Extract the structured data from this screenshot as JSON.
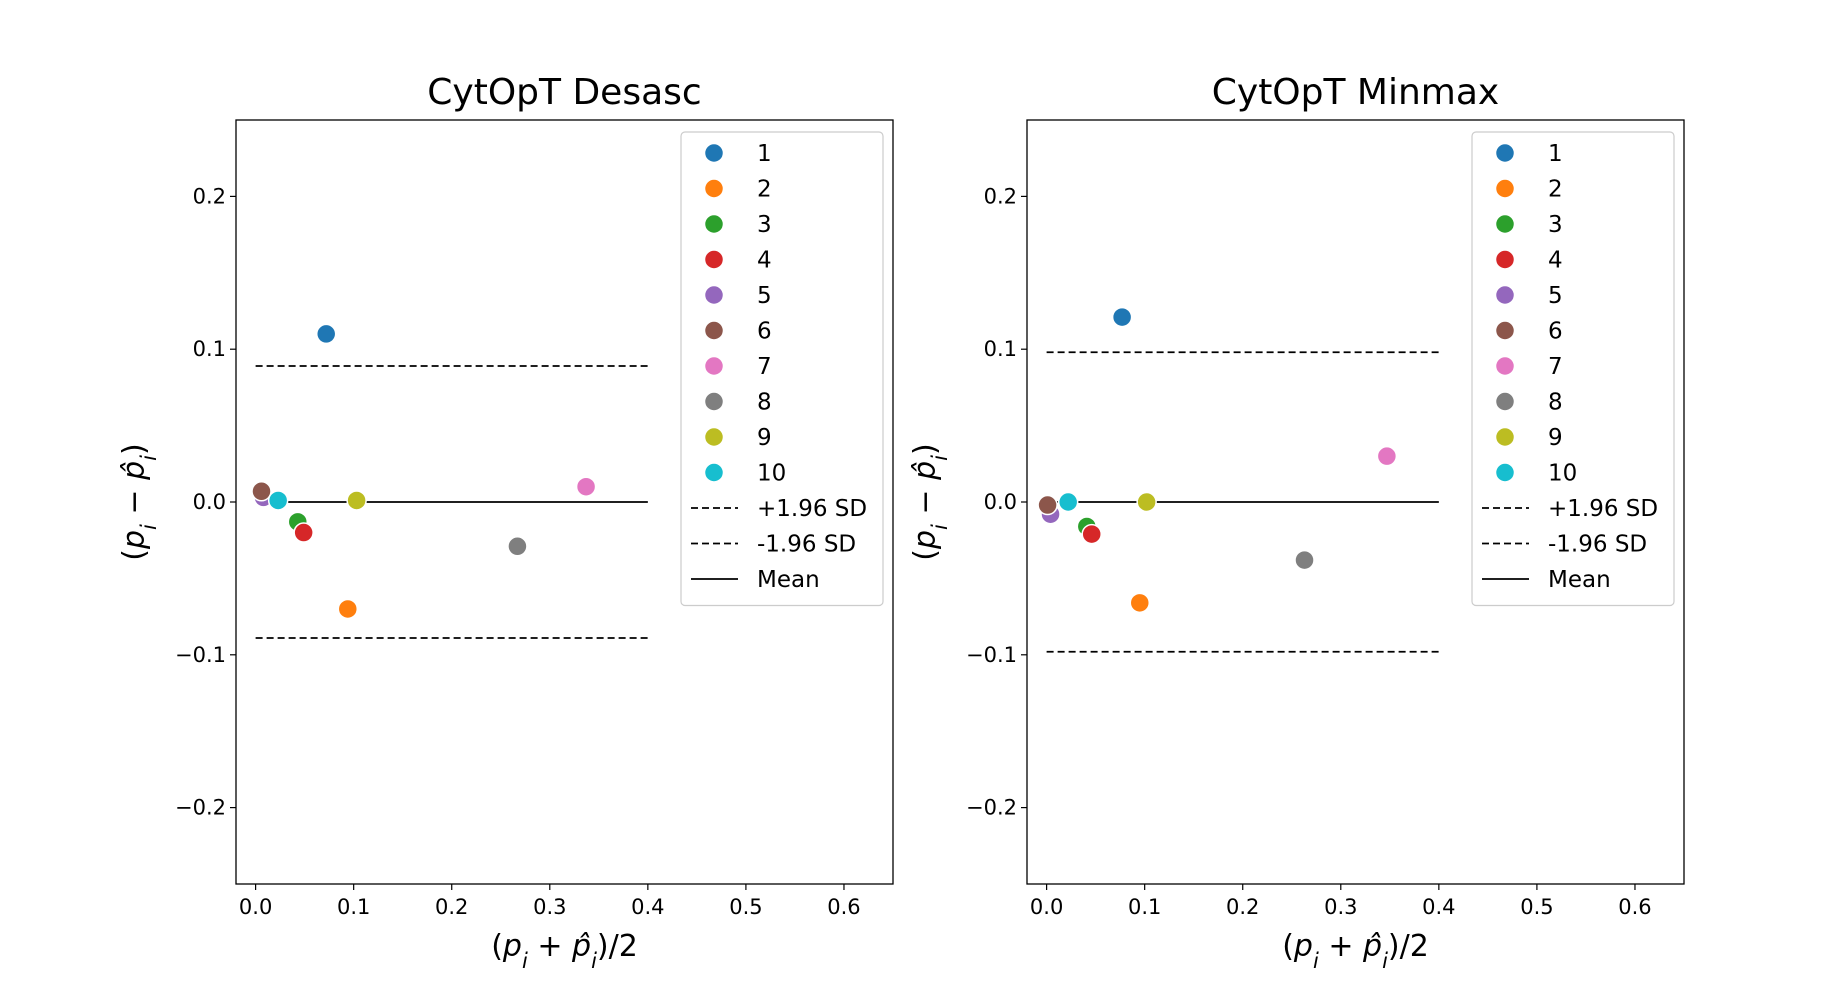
{
  "chart_data": [
    {
      "type": "scatter",
      "title": "CytOpT Desasc",
      "xlabel": "(p_i + p̂_i)/2",
      "ylabel": "(p_i − p̂_i)",
      "xlim": [
        -0.02,
        0.65
      ],
      "ylim": [
        -0.25,
        0.25
      ],
      "xticks": [
        0.0,
        0.1,
        0.2,
        0.3,
        0.4,
        0.5,
        0.6
      ],
      "xtick_labels": [
        "0.0",
        "0.1",
        "0.2",
        "0.3",
        "0.4",
        "0.5",
        "0.6"
      ],
      "yticks": [
        -0.2,
        -0.1,
        0.0,
        0.1,
        0.2
      ],
      "ytick_labels": [
        "−0.2",
        "−0.1",
        "0.0",
        "0.1",
        "0.2"
      ],
      "grid": false,
      "legend_position": "top-right",
      "series": [
        {
          "name": "1",
          "color": "#1f77b4",
          "x": 0.072,
          "y": 0.11
        },
        {
          "name": "2",
          "color": "#ff7f0e",
          "x": 0.094,
          "y": -0.07
        },
        {
          "name": "3",
          "color": "#2ca02c",
          "x": 0.043,
          "y": -0.013
        },
        {
          "name": "4",
          "color": "#d62728",
          "x": 0.049,
          "y": -0.02
        },
        {
          "name": "5",
          "color": "#9467bd",
          "x": 0.008,
          "y": 0.003
        },
        {
          "name": "6",
          "color": "#8c564b",
          "x": 0.006,
          "y": 0.007
        },
        {
          "name": "7",
          "color": "#e377c2",
          "x": 0.337,
          "y": 0.01
        },
        {
          "name": "8",
          "color": "#7f7f7f",
          "x": 0.267,
          "y": -0.029
        },
        {
          "name": "9",
          "color": "#bcbd22",
          "x": 0.103,
          "y": 0.001
        },
        {
          "name": "10",
          "color": "#17becf",
          "x": 0.023,
          "y": 0.001
        }
      ],
      "reference_lines": [
        {
          "name": "+1.96 SD",
          "y": 0.089,
          "style": "dashed",
          "x_range": [
            0.0,
            0.4
          ]
        },
        {
          "name": "-1.96 SD",
          "y": -0.089,
          "style": "dashed",
          "x_range": [
            0.0,
            0.4
          ]
        },
        {
          "name": "Mean",
          "y": 0.0,
          "style": "solid",
          "x_range": [
            0.0,
            0.4
          ]
        }
      ]
    },
    {
      "type": "scatter",
      "title": "CytOpT Minmax",
      "xlabel": "(p_i + p̂_i)/2",
      "ylabel": "(p_i − p̂_i)",
      "xlim": [
        -0.02,
        0.65
      ],
      "ylim": [
        -0.25,
        0.25
      ],
      "xticks": [
        0.0,
        0.1,
        0.2,
        0.3,
        0.4,
        0.5,
        0.6
      ],
      "xtick_labels": [
        "0.0",
        "0.1",
        "0.2",
        "0.3",
        "0.4",
        "0.5",
        "0.6"
      ],
      "yticks": [
        -0.2,
        -0.1,
        0.0,
        0.1,
        0.2
      ],
      "ytick_labels": [
        "−0.2",
        "−0.1",
        "0.0",
        "0.1",
        "0.2"
      ],
      "grid": false,
      "legend_position": "top-right",
      "series": [
        {
          "name": "1",
          "color": "#1f77b4",
          "x": 0.077,
          "y": 0.121
        },
        {
          "name": "2",
          "color": "#ff7f0e",
          "x": 0.095,
          "y": -0.066
        },
        {
          "name": "3",
          "color": "#2ca02c",
          "x": 0.041,
          "y": -0.016
        },
        {
          "name": "4",
          "color": "#d62728",
          "x": 0.046,
          "y": -0.021
        },
        {
          "name": "5",
          "color": "#9467bd",
          "x": 0.004,
          "y": -0.008
        },
        {
          "name": "6",
          "color": "#8c564b",
          "x": 0.001,
          "y": -0.002
        },
        {
          "name": "7",
          "color": "#e377c2",
          "x": 0.347,
          "y": 0.03
        },
        {
          "name": "8",
          "color": "#7f7f7f",
          "x": 0.263,
          "y": -0.038
        },
        {
          "name": "9",
          "color": "#bcbd22",
          "x": 0.102,
          "y": 0.0
        },
        {
          "name": "10",
          "color": "#17becf",
          "x": 0.022,
          "y": 0.0
        }
      ],
      "reference_lines": [
        {
          "name": "+1.96 SD",
          "y": 0.098,
          "style": "dashed",
          "x_range": [
            0.0,
            0.4
          ]
        },
        {
          "name": "-1.96 SD",
          "y": -0.098,
          "style": "dashed",
          "x_range": [
            0.0,
            0.4
          ]
        },
        {
          "name": "Mean",
          "y": 0.0,
          "style": "solid",
          "x_range": [
            0.0,
            0.4
          ]
        }
      ]
    }
  ]
}
